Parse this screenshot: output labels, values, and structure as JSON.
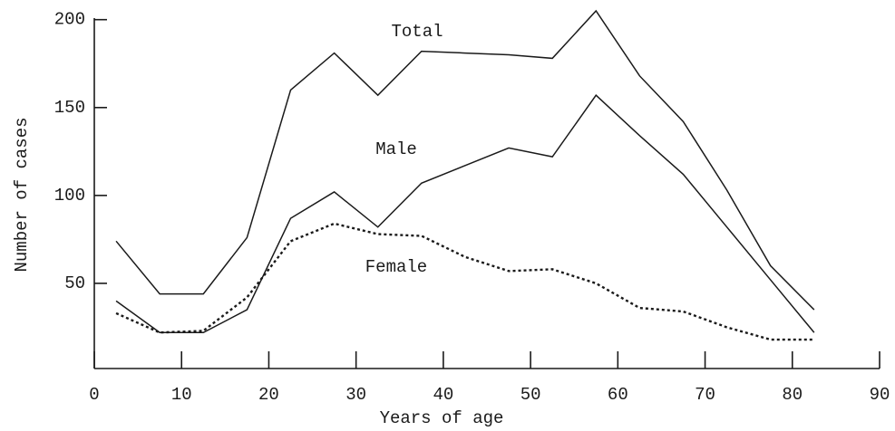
{
  "chart_data": {
    "type": "line",
    "xlabel": "Years of age",
    "ylabel": "Number of cases",
    "x": [
      2.5,
      7.5,
      12.5,
      17.5,
      22.5,
      27.5,
      32.5,
      37.5,
      42.5,
      47.5,
      52.5,
      57.5,
      62.5,
      67.5,
      72.5,
      77.5,
      82.5
    ],
    "series": [
      {
        "name": "Total",
        "color": "#1a1a1a",
        "dash": false,
        "values": [
          74,
          44,
          44,
          76,
          160,
          181,
          157,
          182,
          181,
          180,
          178,
          205,
          168,
          142,
          103,
          60,
          35
        ]
      },
      {
        "name": "Male",
        "color": "#1a1a1a",
        "dash": false,
        "values": [
          40,
          22,
          22,
          35,
          87,
          102,
          82,
          107,
          117,
          127,
          122,
          157,
          134,
          112,
          82,
          52,
          22
        ]
      },
      {
        "name": "Female",
        "color": "#1a1a1a",
        "dash": true,
        "values": [
          33,
          22,
          23,
          42,
          74,
          84,
          78,
          77,
          65,
          57,
          58,
          50,
          36,
          34,
          25,
          18,
          18
        ]
      }
    ],
    "xlim": [
      0,
      90
    ],
    "xticks": [
      0,
      10,
      20,
      30,
      40,
      50,
      60,
      70,
      80,
      90
    ],
    "ylim": [
      0,
      205
    ],
    "yticks": [
      50,
      100,
      150,
      200
    ],
    "grid": false
  }
}
